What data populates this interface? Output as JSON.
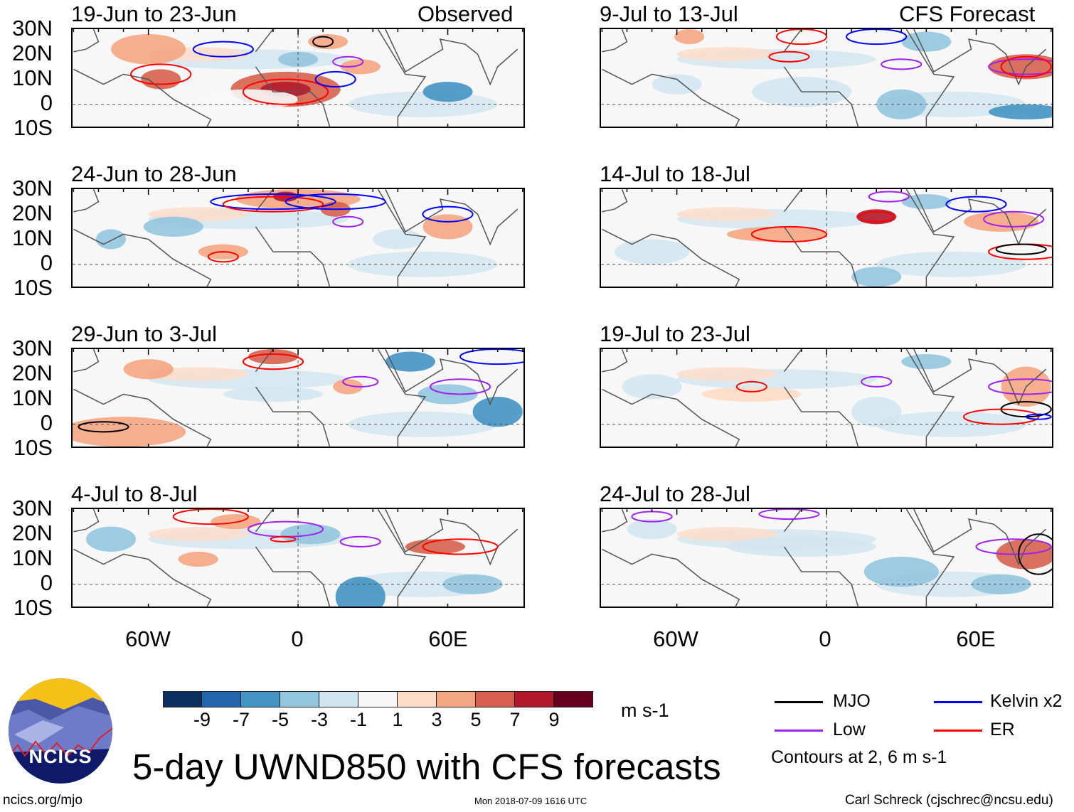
{
  "headers": {
    "left": "Observed",
    "right": "CFS Forecast"
  },
  "panels": {
    "left": [
      "19-Jun to 23-Jun",
      "24-Jun to 28-Jun",
      "29-Jun to 3-Jul",
      "4-Jul to 8-Jul"
    ],
    "right": [
      "9-Jul to 13-Jul",
      "14-Jul to 18-Jul",
      "19-Jul to 23-Jul",
      "24-Jul to 28-Jul"
    ]
  },
  "lat_labels": [
    "30N",
    "20N",
    "10N",
    "0",
    "10S"
  ],
  "lon_labels": [
    "60W",
    "0",
    "60E"
  ],
  "colorbar": {
    "colors": [
      "#0b2f5e",
      "#2166ac",
      "#4393c3",
      "#92c5de",
      "#d1e5f0",
      "#f7f7f7",
      "#fddbc7",
      "#f4a582",
      "#d6604d",
      "#b2182b",
      "#67001f"
    ],
    "ticks": [
      "-9",
      "-7",
      "-5",
      "-3",
      "-1",
      "1",
      "3",
      "5",
      "7",
      "9"
    ],
    "units": "m s-1"
  },
  "legend": {
    "items": [
      {
        "label": "MJO",
        "color": "#000000"
      },
      {
        "label": "Kelvin x2",
        "color": "#0000ff"
      },
      {
        "label": "Low",
        "color": "#a020f0"
      },
      {
        "label": "ER",
        "color": "#ff0000"
      }
    ],
    "note": "Contours at 2, 6 m s-1"
  },
  "logo_text": "NCICS",
  "title": "5-day UWND850 with CFS forecasts",
  "footer": {
    "left": "ncics.org/mjo",
    "center": "Mon 2018-07-09 1616 UTC",
    "right": "Carl Schreck (cjschrec@ncsu.edu)"
  }
}
